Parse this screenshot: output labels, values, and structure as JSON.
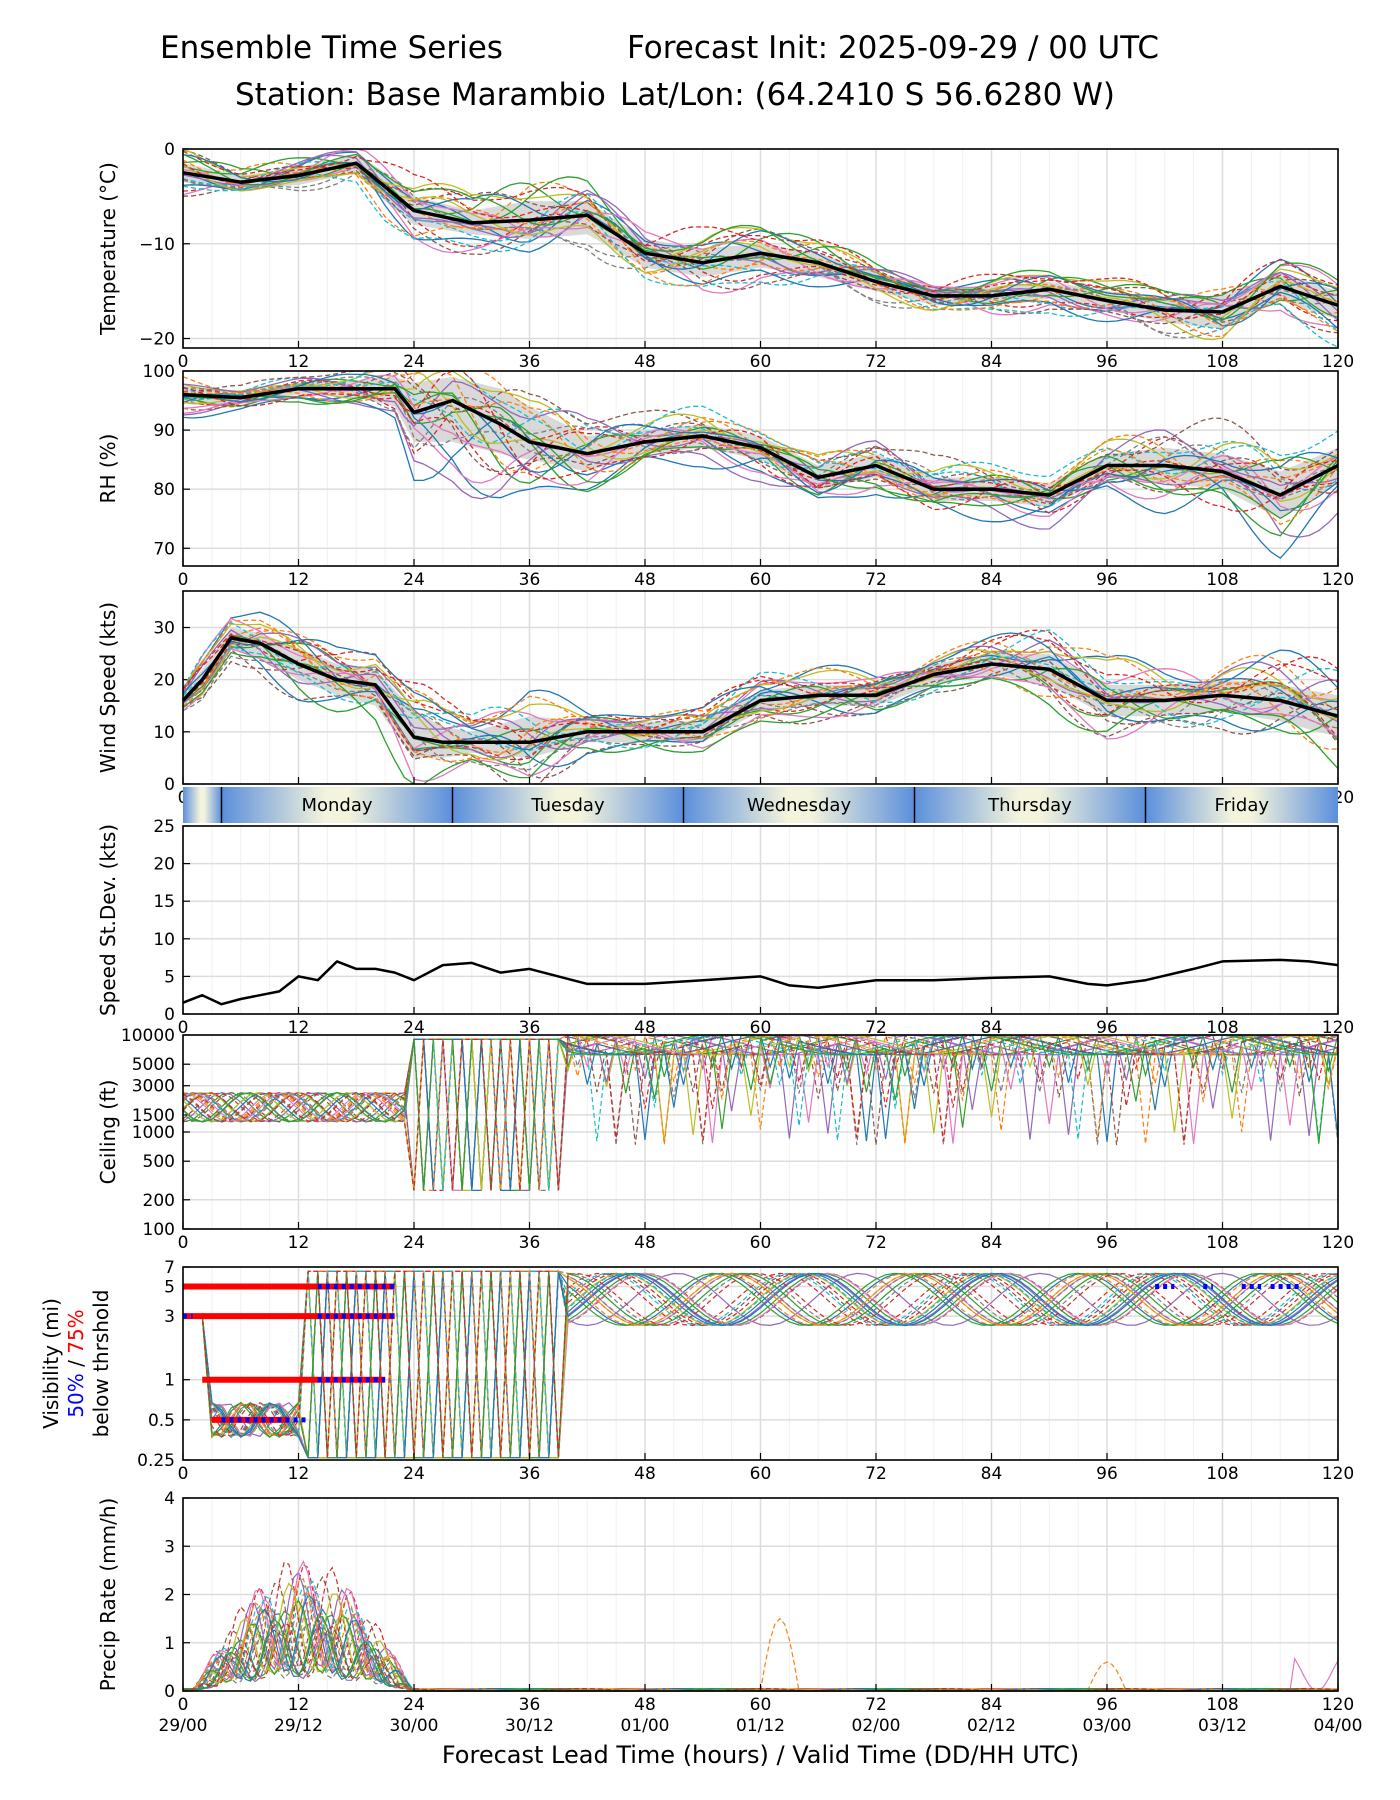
{
  "header": {
    "title": "Ensemble Time Series",
    "init": "Forecast Init: 2025-09-29 / 00 UTC",
    "station": "Station: Base Marambio",
    "latlon": "Lat/Lon: (64.2410 S 56.6280 W)"
  },
  "colors": {
    "mean": "#000000",
    "spread": "#d0d0d0",
    "vis50": "#0000ff",
    "vis75": "#ff0000",
    "members": [
      "#1f77b4",
      "#ff7f0e",
      "#2ca02c",
      "#d62728",
      "#9467bd",
      "#8c564b",
      "#e377c2",
      "#7f7f7f",
      "#bcbd22",
      "#17becf"
    ],
    "dayband": [
      "#5b8fdc",
      "#f4f4dc"
    ]
  },
  "chart_data": [
    {
      "type": "line",
      "ylabel": "Temperature (°C)",
      "ylim": [
        -21,
        0
      ],
      "yticks": [
        "0",
        "−10",
        "−20"
      ],
      "ytick_values": [
        0,
        -10,
        -20
      ],
      "x": [
        0,
        6,
        12,
        18,
        21,
        24,
        30,
        36,
        42,
        48,
        54,
        60,
        66,
        72,
        78,
        84,
        90,
        96,
        102,
        108,
        114,
        120
      ],
      "mean": [
        -2.5,
        -3.5,
        -2.8,
        -1.5,
        -4,
        -6.5,
        -7.8,
        -7.5,
        -7,
        -11,
        -12,
        -11,
        -12,
        -14,
        -15.5,
        -15.5,
        -14.8,
        -16,
        -17,
        -17.2,
        -14.5,
        -16.5
      ],
      "spread_hi": [
        -1.5,
        -2.8,
        -2,
        -0.5,
        -2.5,
        -5,
        -6.5,
        -5.5,
        -5.5,
        -9.5,
        -10.5,
        -10,
        -11,
        -13,
        -14.5,
        -14.5,
        -14,
        -15,
        -15.8,
        -15.5,
        -13,
        -15
      ],
      "spread_lo": [
        -3.5,
        -4.3,
        -3.8,
        -2.5,
        -5.5,
        -8,
        -9,
        -9.5,
        -9,
        -12.5,
        -13.5,
        -12.5,
        -13.5,
        -15,
        -16.5,
        -16.5,
        -15.8,
        -17,
        -18.3,
        -19,
        -16,
        -18
      ]
    },
    {
      "type": "line",
      "ylabel": "RH (%)",
      "ylim": [
        67,
        100
      ],
      "yticks": [
        "100",
        "90",
        "80",
        "70"
      ],
      "ytick_values": [
        100,
        90,
        80,
        70
      ],
      "x": [
        0,
        6,
        12,
        18,
        22,
        24,
        28,
        33,
        36,
        42,
        48,
        54,
        60,
        66,
        72,
        78,
        84,
        90,
        96,
        102,
        108,
        114,
        120
      ],
      "mean": [
        96,
        95.5,
        97,
        97,
        97,
        93,
        95,
        91,
        88,
        86,
        88,
        89,
        87,
        82,
        84,
        80,
        80,
        79,
        84,
        84,
        83,
        79,
        84
      ],
      "spread_hi": [
        97.5,
        96.5,
        98,
        98.5,
        99,
        98,
        99,
        97,
        94,
        89,
        90,
        91,
        89,
        84,
        86,
        82,
        82,
        81,
        86,
        87,
        86,
        83,
        87
      ],
      "spread_lo": [
        94.5,
        94.5,
        96,
        95.5,
        94,
        88,
        88,
        86,
        85,
        83,
        86,
        87,
        85,
        80,
        82,
        78,
        78,
        77,
        82,
        81,
        80,
        75,
        81
      ]
    },
    {
      "type": "line",
      "ylabel": "Wind Speed (kts)",
      "ylim": [
        0,
        37
      ],
      "yticks": [
        "0",
        "10",
        "20",
        "30"
      ],
      "ytick_values": [
        0,
        10,
        20,
        30
      ],
      "x": [
        0,
        2,
        5,
        8,
        12,
        16,
        20,
        24,
        27,
        30,
        36,
        42,
        48,
        54,
        60,
        66,
        72,
        78,
        84,
        90,
        96,
        102,
        108,
        114,
        120
      ],
      "mean": [
        16,
        20,
        28,
        27,
        23,
        20,
        19,
        9,
        8,
        8,
        8,
        10,
        10,
        10,
        16,
        17,
        17,
        21,
        23,
        22,
        16,
        16,
        17,
        16,
        13
      ],
      "spread_hi": [
        17,
        22,
        30,
        29,
        26,
        23,
        22,
        14,
        11,
        10,
        13,
        12,
        12,
        12,
        18,
        19,
        19,
        23,
        25,
        25,
        19,
        19,
        20,
        19,
        17
      ],
      "spread_lo": [
        15,
        18,
        26,
        24,
        20,
        17,
        15,
        5,
        5,
        6,
        5,
        8,
        8,
        8,
        14,
        15,
        15,
        19,
        21,
        19,
        13,
        13,
        14,
        12,
        9
      ]
    },
    {
      "type": "line",
      "ylabel": "Speed St.Dev. (kts)",
      "ylim": [
        0,
        25
      ],
      "yticks": [
        "0",
        "5",
        "10",
        "15",
        "20",
        "25"
      ],
      "ytick_values": [
        0,
        5,
        10,
        15,
        20,
        25
      ],
      "x": [
        0,
        2,
        4,
        6,
        8,
        10,
        12,
        14,
        16,
        18,
        20,
        22,
        24,
        27,
        30,
        33,
        36,
        42,
        48,
        54,
        60,
        63,
        66,
        72,
        78,
        84,
        90,
        94,
        96,
        100,
        105,
        108,
        114,
        117,
        120
      ],
      "mean": [
        1.5,
        2.5,
        1.3,
        2,
        2.5,
        3,
        5,
        4.5,
        7,
        6,
        6,
        5.5,
        4.5,
        6.5,
        6.8,
        5.5,
        6,
        4,
        4,
        4.5,
        5,
        3.8,
        3.5,
        4.5,
        4.5,
        4.8,
        5,
        4,
        3.8,
        4.5,
        6,
        7,
        7.2,
        7,
        6.5
      ]
    },
    {
      "type": "line",
      "ylabel": "Ceiling (ft)",
      "scale": "log",
      "ylim": [
        100,
        10000
      ],
      "yticks": [
        "10000",
        "5000",
        "3000",
        "1500",
        "1000",
        "500",
        "200",
        "100"
      ],
      "ytick_values": [
        10000,
        5000,
        3000,
        1500,
        1000,
        500,
        200,
        100
      ]
    },
    {
      "type": "line",
      "ylabel": "Visibility (mi)",
      "ylabel_50": "50%",
      "ylabel_sep": " / ",
      "ylabel_75": "75%",
      "ylabel_2": "below thrshold",
      "scale": "log",
      "ylim": [
        0.25,
        7
      ],
      "yticks": [
        "7",
        "5",
        "3",
        "1",
        "0.5",
        "0.25"
      ],
      "ytick_values": [
        7,
        5,
        3,
        1,
        0.5,
        0.25
      ],
      "thresholds_75": [
        {
          "level": 5,
          "from": 0,
          "to": 22
        },
        {
          "level": 3,
          "from": 0,
          "to": 22
        },
        {
          "level": 1,
          "from": 2,
          "to": 21
        },
        {
          "level": 0.5,
          "from": 3,
          "to": 11
        }
      ],
      "thresholds_50": [
        {
          "level": 5,
          "from": 14,
          "to": 22
        },
        {
          "level": 5,
          "from": 101,
          "to": 103
        },
        {
          "level": 5,
          "from": 106,
          "to": 107
        },
        {
          "level": 5,
          "from": 110,
          "to": 112
        },
        {
          "level": 5,
          "from": 113,
          "to": 116
        },
        {
          "level": 3,
          "from": 0,
          "to": 1
        },
        {
          "level": 3,
          "from": 14,
          "to": 22
        },
        {
          "level": 1,
          "from": 14,
          "to": 21
        },
        {
          "level": 0.5,
          "from": 4,
          "to": 13
        }
      ]
    },
    {
      "type": "line",
      "ylabel": "Precip Rate (mm/h)",
      "ylim": [
        0,
        4
      ],
      "yticks": [
        "0",
        "1",
        "2",
        "3",
        "4"
      ],
      "ytick_values": [
        0,
        1,
        2,
        3,
        4
      ]
    }
  ],
  "xaxis": {
    "xlim": [
      0,
      120
    ],
    "ticks": [
      0,
      12,
      24,
      36,
      48,
      60,
      72,
      84,
      96,
      108,
      120
    ],
    "tick_labels": [
      "0",
      "12",
      "24",
      "36",
      "48",
      "60",
      "72",
      "84",
      "96",
      "108",
      "120"
    ],
    "valid_labels": [
      "29/00",
      "29/12",
      "30/00",
      "30/12",
      "01/00",
      "01/12",
      "02/00",
      "02/12",
      "03/00",
      "03/12",
      "04/00"
    ],
    "xlabel": "Forecast Lead Time (hours) / Valid Time (DD/HH UTC)"
  },
  "daybar": {
    "boundaries_hours": [
      4,
      28,
      52,
      76,
      100
    ],
    "days": [
      "Monday",
      "Tuesday",
      "Wednesday",
      "Thursday",
      "Friday"
    ]
  }
}
